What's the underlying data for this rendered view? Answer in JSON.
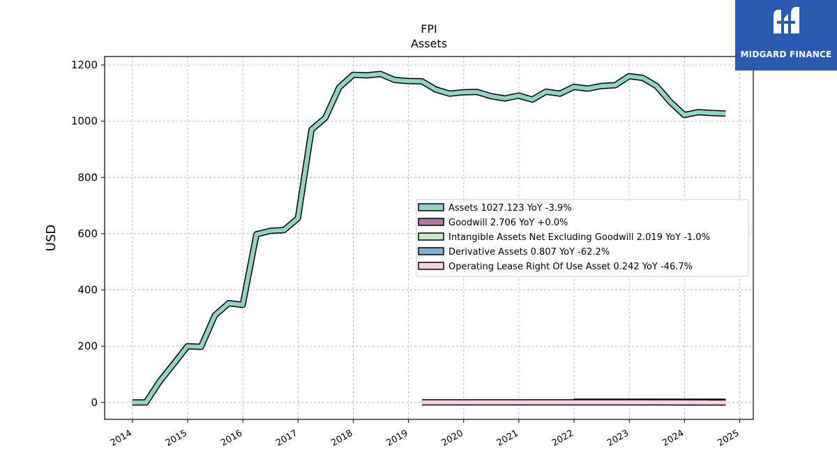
{
  "brand": {
    "name": "MIDGARD FINANCE"
  },
  "chart_data": {
    "type": "line",
    "title": "FPI",
    "subtitle": "Assets",
    "xlabel": "",
    "ylabel": "USD",
    "ylim": [
      -60,
      1230
    ],
    "xlim": [
      "2013-07-01",
      "2025-04-01"
    ],
    "yticks": [
      0,
      200,
      400,
      600,
      800,
      1000,
      1200
    ],
    "xticks": [
      "2014",
      "2015",
      "2016",
      "2017",
      "2018",
      "2019",
      "2020",
      "2021",
      "2022",
      "2023",
      "2024",
      "2025"
    ],
    "grid": true,
    "legend_position": "center-right",
    "series": [
      {
        "name": "Assets",
        "legend": "Assets  1027.123 YoY -3.9%",
        "color": "#8dd3c7",
        "x": [
          "2013-12-31",
          "2014-03-31",
          "2014-06-30",
          "2014-09-30",
          "2014-12-31",
          "2015-03-31",
          "2015-06-30",
          "2015-09-30",
          "2015-12-31",
          "2016-03-31",
          "2016-06-30",
          "2016-09-30",
          "2016-12-31",
          "2017-03-31",
          "2017-06-30",
          "2017-09-30",
          "2017-12-31",
          "2018-03-31",
          "2018-06-30",
          "2018-09-30",
          "2018-12-31",
          "2019-03-31",
          "2019-06-30",
          "2019-09-30",
          "2019-12-31",
          "2020-03-31",
          "2020-06-30",
          "2020-09-30",
          "2020-12-31",
          "2021-03-31",
          "2021-06-30",
          "2021-09-30",
          "2021-12-31",
          "2022-03-31",
          "2022-06-30",
          "2022-09-30",
          "2022-12-31",
          "2023-03-31",
          "2023-06-30",
          "2023-09-30",
          "2023-12-31",
          "2024-03-31",
          "2024-06-30",
          "2024-09-30"
        ],
        "values": [
          0,
          0,
          75,
          137,
          200,
          198,
          310,
          353,
          347,
          598,
          610,
          613,
          655,
          970,
          1012,
          1120,
          1165,
          1163,
          1168,
          1147,
          1143,
          1142,
          1113,
          1098,
          1103,
          1104,
          1089,
          1081,
          1091,
          1077,
          1105,
          1098,
          1122,
          1116,
          1125,
          1128,
          1160,
          1154,
          1125,
          1068,
          1022,
          1032,
          1029,
          1027
        ]
      },
      {
        "name": "Goodwill",
        "legend": "Goodwill  2.706 YoY +0.0%",
        "color": "#b07aa1",
        "x": [
          "2021-12-31",
          "2024-09-30"
        ],
        "values": [
          2.706,
          2.706
        ]
      },
      {
        "name": "Intangible Assets Net Excluding Goodwill",
        "legend": "Intangible Assets Net Excluding Goodwill  2.019 YoY -1.0%",
        "color": "#ccebc5",
        "x": [
          "2021-12-31",
          "2024-09-30"
        ],
        "values": [
          2.04,
          2.019
        ]
      },
      {
        "name": "Derivative Assets",
        "legend": "Derivative Assets  0.807 YoY -62.2%",
        "color": "#80b1d3",
        "x": [
          "2021-12-31",
          "2024-09-30"
        ],
        "values": [
          2.1,
          0.807
        ]
      },
      {
        "name": "Operating Lease Right Of Use Asset",
        "legend": "Operating Lease Right Of Use Asset  0.242 YoY -46.7%",
        "color": "#fccde5",
        "x": [
          "2019-03-31",
          "2024-09-30"
        ],
        "values": [
          0.45,
          0.242
        ]
      }
    ]
  }
}
